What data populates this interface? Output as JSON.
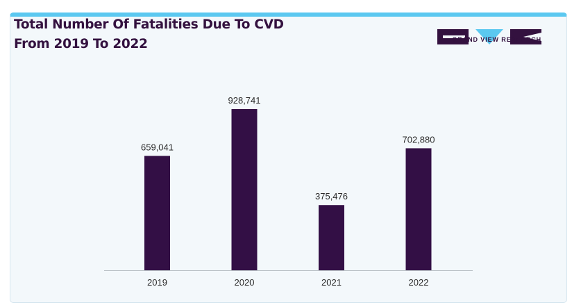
{
  "header": {
    "title_line1": "Total Number Of Fatalities Due To CVD",
    "title_line2": "From 2019 To 2022"
  },
  "logo": {
    "text": "GRAND VIEW RESEARCH",
    "icon": "grand-view-research-logo"
  },
  "colors": {
    "bar": "#330f45",
    "accent": "#5bc8f0",
    "title": "#33113f"
  },
  "chart_data": {
    "type": "bar",
    "title": "Total Number Of Fatalities Due To CVD From 2019 To 2022",
    "categories": [
      "2019",
      "2020",
      "2021",
      "2022"
    ],
    "values": [
      659041,
      928741,
      375476,
      702880
    ],
    "value_labels": [
      "659,041",
      "928,741",
      "375,476",
      "702,880"
    ],
    "xlabel": "",
    "ylabel": "",
    "ylim": [
      0,
      1000000
    ],
    "grid": false,
    "legend": "none"
  }
}
